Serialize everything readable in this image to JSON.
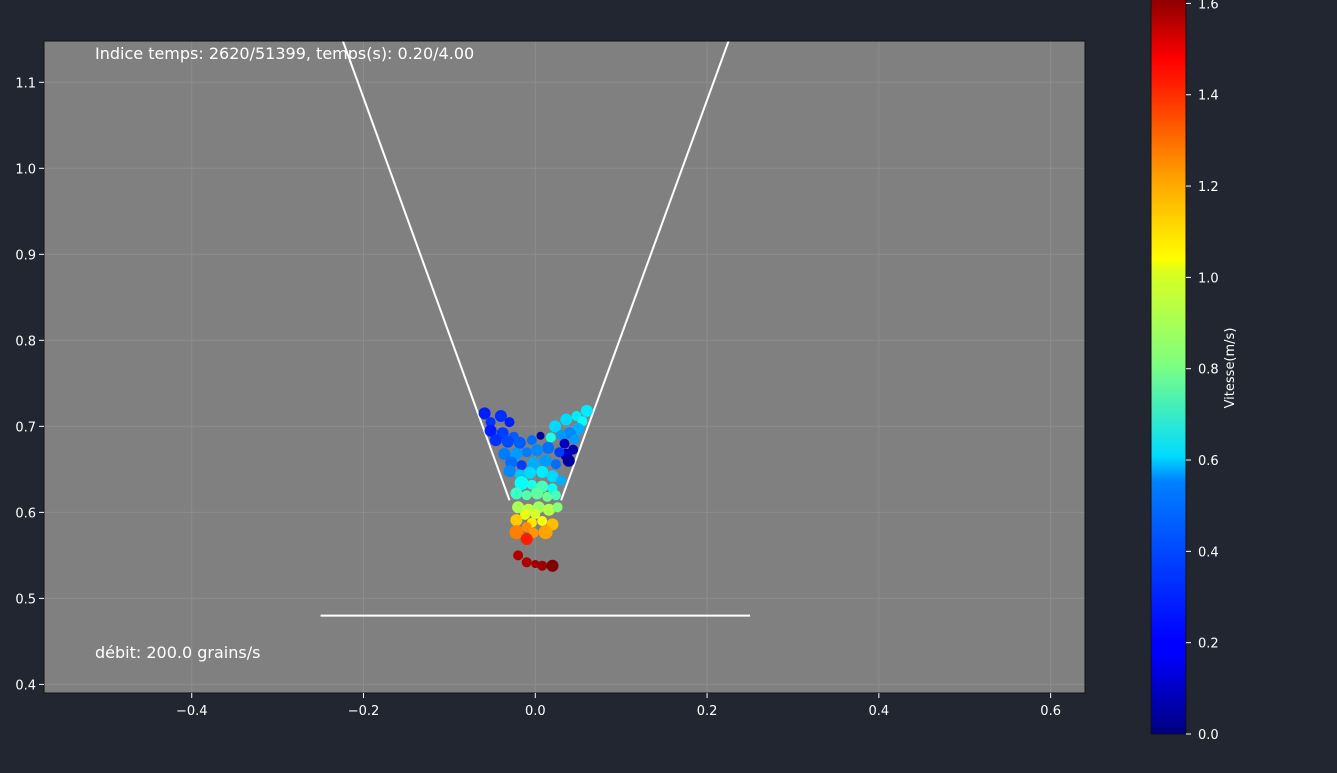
{
  "colors": {
    "figure_bg": "#212630",
    "axes_bg": "#808080",
    "foreground": "#ffffff"
  },
  "chart_data": [
    {
      "type": "scatter",
      "title": "",
      "xlabel": "",
      "ylabel": "",
      "xlim": [
        -0.572,
        0.64
      ],
      "ylim": [
        0.39,
        1.148
      ],
      "xticks": [
        -0.4,
        -0.2,
        0.0,
        0.2,
        0.4,
        0.6
      ],
      "xtick_labels": [
        "−0.4",
        "−0.2",
        "0.0",
        "0.2",
        "0.4",
        "0.6"
      ],
      "yticks": [
        0.4,
        0.5,
        0.6,
        0.7,
        0.8,
        0.9,
        1.0,
        1.1
      ],
      "ytick_labels": [
        "0.4",
        "0.5",
        "0.6",
        "0.7",
        "0.8",
        "0.9",
        "1.0",
        "1.1"
      ],
      "grid": true,
      "colormap": "jet",
      "annotations": {
        "time_index": "Indice temps: 2620/51399, temps(s): 0.20/4.00",
        "flow_rate": "débit: 200.0 grains/s"
      },
      "lines": [
        {
          "name": "hopper-left-wall",
          "x": [
            -0.224,
            -0.03
          ],
          "y": [
            1.148,
            0.614
          ]
        },
        {
          "name": "hopper-right-wall",
          "x": [
            0.225,
            0.03
          ],
          "y": [
            1.148,
            0.614
          ]
        },
        {
          "name": "floor",
          "x": [
            -0.25,
            0.25
          ],
          "y": [
            0.48,
            0.48
          ]
        }
      ],
      "points": [
        {
          "x": -0.059,
          "y": 0.715,
          "v": 0.25,
          "s": 6
        },
        {
          "x": -0.052,
          "y": 0.705,
          "v": 0.28,
          "s": 5
        },
        {
          "x": -0.04,
          "y": 0.712,
          "v": 0.28,
          "s": 6
        },
        {
          "x": -0.03,
          "y": 0.705,
          "v": 0.25,
          "s": 5
        },
        {
          "x": -0.052,
          "y": 0.695,
          "v": 0.25,
          "s": 6
        },
        {
          "x": -0.038,
          "y": 0.692,
          "v": 0.3,
          "s": 6
        },
        {
          "x": -0.025,
          "y": 0.688,
          "v": 0.35,
          "s": 5
        },
        {
          "x": -0.046,
          "y": 0.684,
          "v": 0.28,
          "s": 6
        },
        {
          "x": -0.032,
          "y": 0.682,
          "v": 0.32,
          "s": 6
        },
        {
          "x": -0.018,
          "y": 0.681,
          "v": 0.35,
          "s": 6
        },
        {
          "x": -0.004,
          "y": 0.684,
          "v": 0.38,
          "s": 5
        },
        {
          "x": 0.006,
          "y": 0.689,
          "v": 0.05,
          "s": 4
        },
        {
          "x": 0.018,
          "y": 0.687,
          "v": 0.65,
          "s": 5
        },
        {
          "x": 0.023,
          "y": 0.7,
          "v": 0.55,
          "s": 6
        },
        {
          "x": 0.036,
          "y": 0.708,
          "v": 0.55,
          "s": 6
        },
        {
          "x": 0.048,
          "y": 0.712,
          "v": 0.58,
          "s": 5
        },
        {
          "x": 0.06,
          "y": 0.718,
          "v": 0.58,
          "s": 6
        },
        {
          "x": 0.055,
          "y": 0.706,
          "v": 0.62,
          "s": 5
        },
        {
          "x": 0.05,
          "y": 0.697,
          "v": 0.48,
          "s": 6
        },
        {
          "x": 0.04,
          "y": 0.692,
          "v": 0.42,
          "s": 6
        },
        {
          "x": 0.03,
          "y": 0.69,
          "v": 0.45,
          "s": 5
        },
        {
          "x": 0.046,
          "y": 0.685,
          "v": 0.45,
          "s": 5
        },
        {
          "x": 0.034,
          "y": 0.68,
          "v": 0.1,
          "s": 5
        },
        {
          "x": 0.044,
          "y": 0.673,
          "v": 0.08,
          "s": 5
        },
        {
          "x": 0.036,
          "y": 0.667,
          "v": 0.12,
          "s": 6
        },
        {
          "x": 0.039,
          "y": 0.66,
          "v": 0.05,
          "s": 6
        },
        {
          "x": 0.028,
          "y": 0.67,
          "v": 0.3,
          "s": 5
        },
        {
          "x": 0.015,
          "y": 0.675,
          "v": 0.38,
          "s": 6
        },
        {
          "x": 0.002,
          "y": 0.672,
          "v": 0.42,
          "s": 6
        },
        {
          "x": -0.01,
          "y": 0.67,
          "v": 0.4,
          "s": 5
        },
        {
          "x": -0.022,
          "y": 0.668,
          "v": 0.45,
          "s": 6
        },
        {
          "x": -0.036,
          "y": 0.668,
          "v": 0.4,
          "s": 6
        },
        {
          "x": -0.028,
          "y": 0.658,
          "v": 0.38,
          "s": 6
        },
        {
          "x": -0.016,
          "y": 0.655,
          "v": 0.3,
          "s": 5
        },
        {
          "x": -0.002,
          "y": 0.657,
          "v": 0.48,
          "s": 6
        },
        {
          "x": 0.012,
          "y": 0.66,
          "v": 0.45,
          "s": 6
        },
        {
          "x": 0.024,
          "y": 0.656,
          "v": 0.38,
          "s": 5
        },
        {
          "x": -0.03,
          "y": 0.648,
          "v": 0.42,
          "s": 6
        },
        {
          "x": -0.018,
          "y": 0.644,
          "v": 0.52,
          "s": 5
        },
        {
          "x": -0.006,
          "y": 0.646,
          "v": 0.55,
          "s": 6
        },
        {
          "x": 0.008,
          "y": 0.647,
          "v": 0.58,
          "s": 6
        },
        {
          "x": 0.02,
          "y": 0.642,
          "v": 0.55,
          "s": 6
        },
        {
          "x": 0.03,
          "y": 0.637,
          "v": 0.48,
          "s": 5
        },
        {
          "x": -0.016,
          "y": 0.634,
          "v": 0.62,
          "s": 7
        },
        {
          "x": -0.004,
          "y": 0.632,
          "v": 0.65,
          "s": 5
        },
        {
          "x": 0.008,
          "y": 0.63,
          "v": 0.72,
          "s": 6
        },
        {
          "x": 0.02,
          "y": 0.628,
          "v": 0.62,
          "s": 5
        },
        {
          "x": -0.022,
          "y": 0.622,
          "v": 0.7,
          "s": 6
        },
        {
          "x": -0.01,
          "y": 0.62,
          "v": 0.74,
          "s": 5
        },
        {
          "x": 0.002,
          "y": 0.622,
          "v": 0.76,
          "s": 6
        },
        {
          "x": 0.014,
          "y": 0.618,
          "v": 0.78,
          "s": 5
        },
        {
          "x": 0.024,
          "y": 0.62,
          "v": 0.72,
          "s": 5
        },
        {
          "x": -0.02,
          "y": 0.606,
          "v": 0.88,
          "s": 6
        },
        {
          "x": -0.008,
          "y": 0.603,
          "v": 0.92,
          "s": 6
        },
        {
          "x": 0.004,
          "y": 0.606,
          "v": 0.86,
          "s": 6
        },
        {
          "x": 0.016,
          "y": 0.603,
          "v": 0.9,
          "s": 6
        },
        {
          "x": 0.026,
          "y": 0.606,
          "v": 0.82,
          "s": 5
        },
        {
          "x": -0.012,
          "y": 0.597,
          "v": 0.98,
          "s": 5
        },
        {
          "x": 0.0,
          "y": 0.598,
          "v": 0.95,
          "s": 5
        },
        {
          "x": -0.022,
          "y": 0.591,
          "v": 1.1,
          "s": 6
        },
        {
          "x": -0.004,
          "y": 0.588,
          "v": 1.05,
          "s": 5
        },
        {
          "x": 0.008,
          "y": 0.59,
          "v": 1.0,
          "s": 5
        },
        {
          "x": 0.02,
          "y": 0.586,
          "v": 1.12,
          "s": 6
        },
        {
          "x": -0.01,
          "y": 0.583,
          "v": 1.2,
          "s": 5
        },
        {
          "x": -0.022,
          "y": 0.577,
          "v": 1.22,
          "s": 7
        },
        {
          "x": -0.002,
          "y": 0.576,
          "v": 1.18,
          "s": 5
        },
        {
          "x": 0.012,
          "y": 0.577,
          "v": 1.16,
          "s": 7
        },
        {
          "x": -0.01,
          "y": 0.569,
          "v": 1.38,
          "s": 6
        },
        {
          "x": -0.02,
          "y": 0.55,
          "v": 1.55,
          "s": 5
        },
        {
          "x": -0.01,
          "y": 0.542,
          "v": 1.55,
          "s": 5
        },
        {
          "x": 0.0,
          "y": 0.54,
          "v": 1.58,
          "s": 4
        },
        {
          "x": 0.008,
          "y": 0.538,
          "v": 1.58,
          "s": 5
        },
        {
          "x": 0.02,
          "y": 0.538,
          "v": 1.62,
          "s": 6
        }
      ]
    },
    {
      "type": "colorbar",
      "label": "Vitesse(m/s)",
      "colormap": "jet",
      "range": [
        0,
        1.625
      ],
      "ticks": [
        0.0,
        0.2,
        0.4,
        0.6,
        0.8,
        1.0,
        1.2,
        1.4,
        1.6
      ],
      "tick_labels": [
        "0.0",
        "0.2",
        "0.4",
        "0.6",
        "0.8",
        "1.0",
        "1.2",
        "1.4",
        "1.6"
      ]
    }
  ]
}
